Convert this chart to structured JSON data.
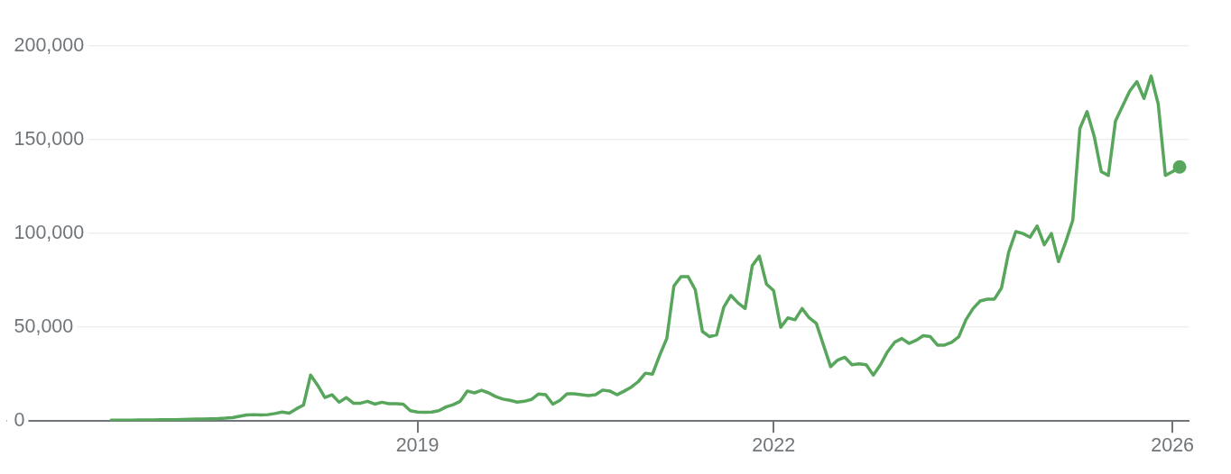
{
  "chart_data": {
    "type": "line",
    "categories": [
      null,
      null,
      null,
      null,
      null,
      null,
      null,
      null,
      null,
      null,
      null,
      null,
      null,
      null,
      null,
      null,
      null,
      null,
      null,
      null,
      null,
      null,
      null,
      null,
      null,
      null,
      null,
      null,
      null,
      null,
      null,
      null,
      null,
      null,
      null,
      null,
      null,
      null,
      null,
      null,
      null,
      null,
      null,
      "2019",
      null,
      null,
      null,
      null,
      null,
      null,
      null,
      null,
      null,
      null,
      null,
      null,
      null,
      null,
      null,
      null,
      null,
      null,
      null,
      null,
      null,
      null,
      null,
      null,
      null,
      null,
      null,
      null,
      null,
      null,
      null,
      null,
      null,
      null,
      null,
      null,
      null,
      null,
      null,
      null,
      null,
      null,
      null,
      null,
      null,
      null,
      null,
      null,
      null,
      "2022",
      null,
      null,
      null,
      null,
      null,
      null,
      null,
      null,
      null,
      null,
      null,
      null,
      null,
      null,
      null,
      null,
      null,
      null,
      null,
      null,
      null,
      null,
      null,
      null,
      null,
      null,
      null,
      null,
      null,
      null,
      null,
      null,
      null,
      null,
      null,
      null,
      null,
      null,
      null,
      null,
      null,
      null,
      null,
      null,
      null,
      null,
      null,
      null,
      null,
      null,
      null,
      null,
      null,
      null,
      null,
      "2026",
      null
    ],
    "series": [
      {
        "color": "#57a65c",
        "values": [
          500,
          500,
          500,
          500,
          600,
          600,
          600,
          700,
          700,
          700,
          800,
          900,
          1000,
          1100,
          1200,
          1300,
          1500,
          1800,
          2500,
          3200,
          3400,
          3200,
          3400,
          4000,
          4800,
          4200,
          6500,
          8500,
          24500,
          19000,
          12500,
          14000,
          10000,
          12500,
          9500,
          9500,
          10500,
          9000,
          10000,
          9200,
          9200,
          9000,
          5500,
          4800,
          4700,
          4800,
          5500,
          7500,
          8700,
          10500,
          16000,
          15000,
          16400,
          15000,
          13000,
          11700,
          11000,
          10100,
          10500,
          11500,
          14400,
          14000,
          9000,
          11000,
          14500,
          14500,
          14000,
          13500,
          14000,
          16500,
          16000,
          14000,
          15900,
          18000,
          21000,
          25500,
          25000,
          35000,
          44000,
          72000,
          77000,
          77000,
          70000,
          47800,
          45000,
          46000,
          60700,
          67000,
          63000,
          60000,
          82800,
          88000,
          73000,
          69500,
          50000,
          55000,
          54000,
          60000,
          55000,
          52000,
          40500,
          29000,
          32500,
          34000,
          30000,
          30500,
          30000,
          24500,
          30000,
          37000,
          42000,
          44000,
          41400,
          43000,
          45500,
          45000,
          40500,
          40500,
          42000,
          45000,
          54000,
          60000,
          64000,
          65000,
          65000,
          71000,
          90000,
          101000,
          100000,
          98000,
          104000,
          94000,
          100000,
          85000,
          95400,
          107000,
          156000,
          165000,
          152000,
          133000,
          131000,
          160000,
          168000,
          176000,
          181000,
          172000,
          184000,
          169000,
          131000,
          133000,
          135500
        ]
      },
      {
        "type": "scatter",
        "color": "#57a65c",
        "marker": "circle",
        "values": [
          null,
          null,
          null,
          null,
          null,
          null,
          null,
          null,
          null,
          null,
          null,
          null,
          null,
          null,
          null,
          null,
          null,
          null,
          null,
          null,
          null,
          null,
          null,
          null,
          null,
          null,
          null,
          null,
          null,
          null,
          null,
          null,
          null,
          null,
          null,
          null,
          null,
          null,
          null,
          null,
          null,
          null,
          null,
          null,
          null,
          null,
          null,
          null,
          null,
          null,
          null,
          null,
          null,
          null,
          null,
          null,
          null,
          null,
          null,
          null,
          null,
          null,
          null,
          null,
          null,
          null,
          null,
          null,
          null,
          null,
          null,
          null,
          null,
          null,
          null,
          null,
          null,
          null,
          null,
          null,
          null,
          null,
          null,
          null,
          null,
          null,
          null,
          null,
          null,
          null,
          null,
          null,
          null,
          null,
          null,
          null,
          null,
          null,
          null,
          null,
          null,
          null,
          null,
          null,
          null,
          null,
          null,
          null,
          null,
          null,
          null,
          null,
          null,
          null,
          null,
          null,
          null,
          null,
          null,
          null,
          null,
          null,
          null,
          null,
          null,
          null,
          null,
          null,
          null,
          null,
          null,
          null,
          null,
          null,
          null,
          null,
          null,
          null,
          null,
          null,
          null,
          null,
          null,
          null,
          null,
          null,
          null,
          null,
          null,
          null,
          135500
        ]
      }
    ],
    "ylim": [
      0,
      200000
    ],
    "yticks": [
      {
        "value": 0,
        "label": "0"
      },
      {
        "value": 50000,
        "label": "50,000"
      },
      {
        "value": 100000,
        "label": "100,000"
      },
      {
        "value": 150000,
        "label": "150,000"
      },
      {
        "value": 200000,
        "label": "200,000"
      }
    ],
    "grid": "y",
    "marker": "none",
    "line_style": "solid"
  }
}
